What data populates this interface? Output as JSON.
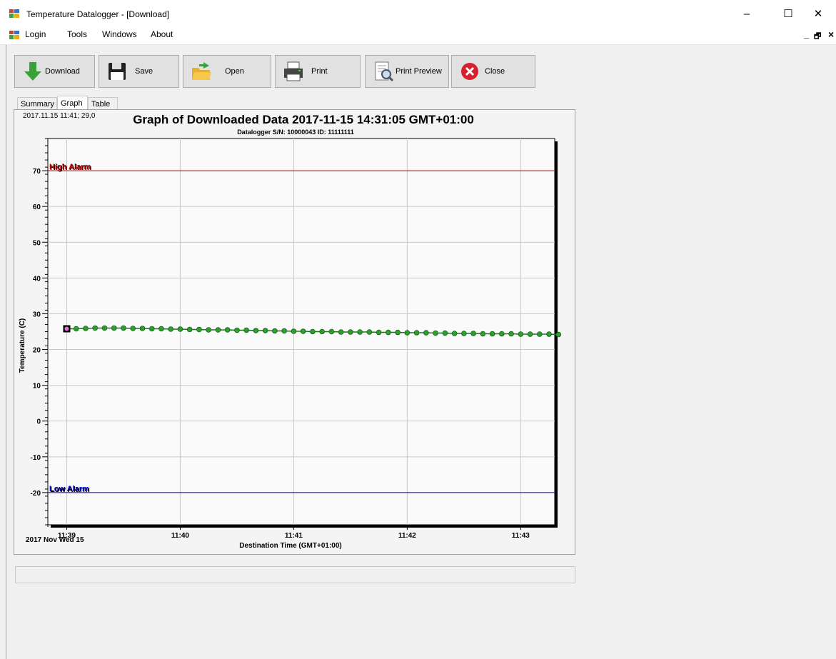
{
  "window": {
    "title": "Temperature Datalogger - [Download]",
    "minimize_glyph": "–",
    "maximize_glyph": "☐",
    "close_glyph": "✕"
  },
  "menu": {
    "items": [
      "Login",
      "Tools",
      "Windows",
      "About"
    ],
    "mdi_minimize": "_",
    "mdi_restore": "🗗",
    "mdi_close": "×"
  },
  "toolbar": {
    "download": "Download",
    "save": "Save",
    "open": "Open",
    "print": "Print",
    "print_preview": "Print Preview",
    "close": "Close"
  },
  "tabs": [
    "Summary",
    "Graph",
    "Table"
  ],
  "active_tab": "Graph",
  "graph": {
    "cursor_readout": "2017.11.15 11:41; 29,0",
    "serial_line": "Datalogger S/N: 10000043  ID: 11111111",
    "date_label": "2017 Nov Wed 15"
  },
  "icons": {
    "app": "app-icon",
    "download": "download-arrow-icon",
    "save": "floppy-disk-icon",
    "open": "open-folder-icon",
    "print": "printer-icon",
    "print_preview": "print-preview-icon",
    "close": "close-circle-icon"
  },
  "colors": {
    "high_alarm": "#c00000",
    "low_alarm": "#0000c0",
    "series": "#2ca02c"
  },
  "chart_data": {
    "type": "line",
    "title": "Graph of Downloaded Data 2017-11-15 14:31:05 GMT+01:00",
    "xlabel": "Destination Time (GMT+01:00)",
    "ylabel": "Temperature (C)",
    "x_ticks": [
      "11:39",
      "11:40",
      "11:41",
      "11:42",
      "11:43"
    ],
    "xlim": [
      "11:38:50",
      "11:43:18"
    ],
    "ylim": [
      -29,
      79
    ],
    "y_ticks": [
      -20,
      -10,
      0,
      10,
      20,
      30,
      40,
      50,
      60,
      70
    ],
    "grid": true,
    "thresholds": [
      {
        "label": "High Alarm",
        "value": 70
      },
      {
        "label": "Low Alarm",
        "value": -20
      }
    ],
    "start_time": "11:39:00",
    "sample_interval_s": 5,
    "series": [
      {
        "values": [
          25.8,
          25.8,
          25.9,
          26.0,
          26.0,
          26.0,
          26.0,
          25.9,
          25.9,
          25.8,
          25.8,
          25.7,
          25.7,
          25.6,
          25.6,
          25.5,
          25.5,
          25.5,
          25.4,
          25.4,
          25.3,
          25.3,
          25.2,
          25.2,
          25.1,
          25.1,
          25.0,
          25.0,
          25.0,
          24.9,
          24.9,
          24.9,
          24.9,
          24.8,
          24.8,
          24.8,
          24.7,
          24.7,
          24.7,
          24.6,
          24.6,
          24.5,
          24.5,
          24.5,
          24.4,
          24.4,
          24.4,
          24.4,
          24.3,
          24.3,
          24.3,
          24.3,
          24.2
        ]
      }
    ]
  }
}
